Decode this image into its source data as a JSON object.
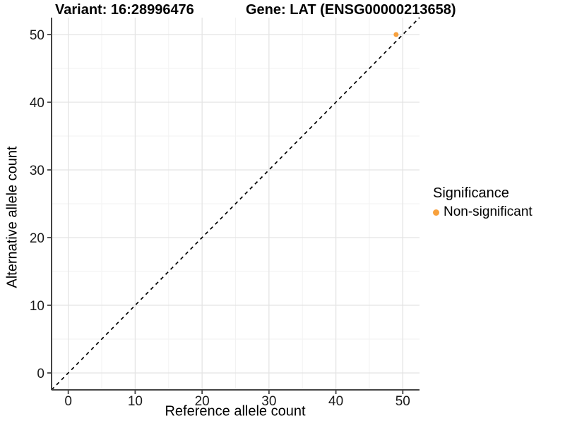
{
  "figure": {
    "title_left": "Variant: 16:28996476",
    "title_right": "Gene: LAT (ENSG00000213658)"
  },
  "axes": {
    "x_label": "Reference allele count",
    "y_label": "Alternative allele count"
  },
  "legend": {
    "title": "Significance",
    "items": [
      {
        "label": "Non-significant",
        "color": "#F8A13D"
      }
    ]
  },
  "colors": {
    "point": "#F8A13D",
    "grid_major": "#E4E4E4",
    "grid_minor": "#F2F2F2",
    "axis_line": "#444444",
    "tick_mark": "#444444",
    "tick_label": "#1A1A1A",
    "reference_line": "#000000",
    "background": "#FFFFFF"
  },
  "chart_data": {
    "type": "scatter",
    "title": "Variant: 16:28996476 — Gene: LAT (ENSG00000213658)",
    "xlabel": "Reference allele count",
    "ylabel": "Alternative allele count",
    "xlim": [
      -2.5,
      52.5
    ],
    "ylim": [
      -2.5,
      52.5
    ],
    "x_ticks": [
      0,
      10,
      20,
      30,
      40,
      50
    ],
    "y_ticks": [
      0,
      10,
      20,
      30,
      40,
      50
    ],
    "x_minor_ticks": [
      5,
      15,
      25,
      35,
      45
    ],
    "y_minor_ticks": [
      5,
      15,
      25,
      35,
      45
    ],
    "grid": true,
    "legend_position": "right",
    "series": [
      {
        "name": "Non-significant",
        "color": "#F8A13D",
        "points": [
          {
            "x": 49,
            "y": 50
          }
        ]
      }
    ],
    "reference_line": {
      "type": "identity",
      "slope": 1,
      "intercept": 0,
      "style": "dashed",
      "color": "#000000"
    }
  }
}
